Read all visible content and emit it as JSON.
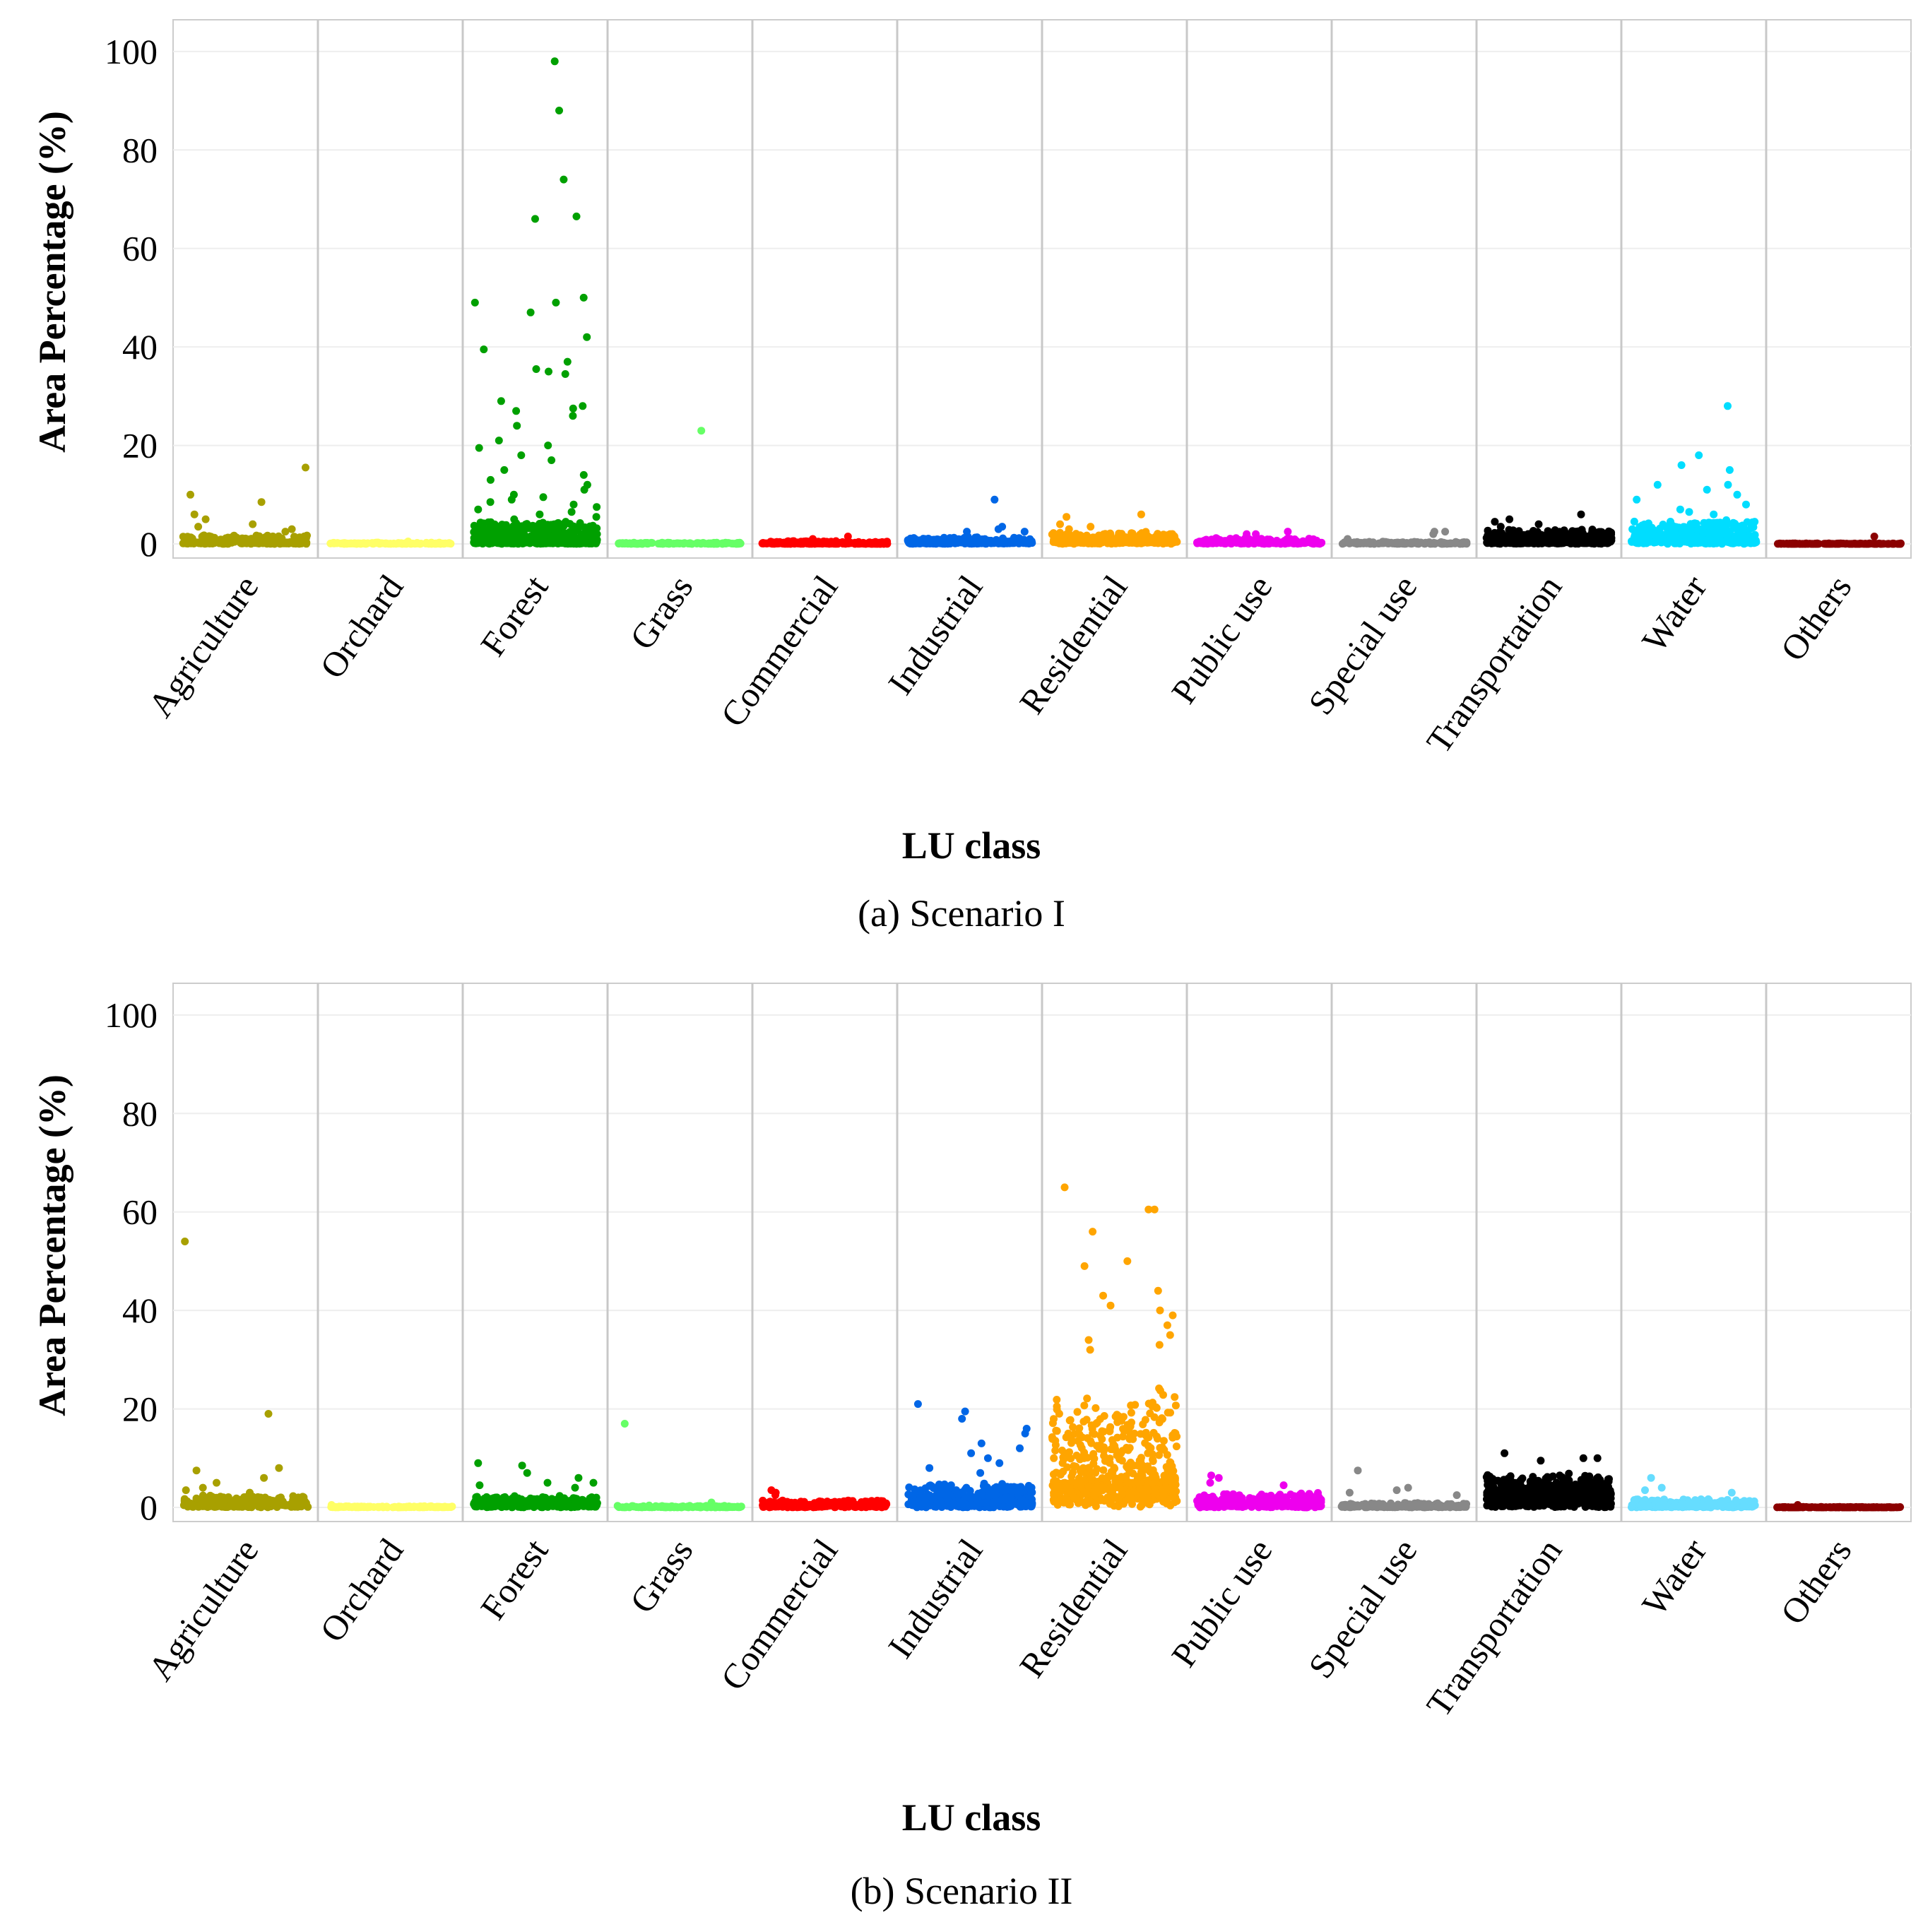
{
  "chart_data": [
    {
      "type": "scatter",
      "caption": "(a) Scenario I",
      "xlabel": "LU class",
      "ylabel": "Area Percentage (%)",
      "ylim": [
        0,
        105
      ],
      "yticks": [
        0,
        20,
        40,
        60,
        80,
        100
      ],
      "grid": true,
      "categories": [
        "Agriculture",
        "Orchard",
        "Forest",
        "Grass",
        "Commercial",
        "Industrial",
        "Residential",
        "Public use",
        "Special use",
        "Transportation",
        "Water",
        "Others"
      ],
      "colors": [
        "#a8a000",
        "#ffff66",
        "#00a000",
        "#66ff66",
        "#ff0000",
        "#0066e6",
        "#ffa500",
        "#ee00ee",
        "#888888",
        "#000000",
        "#00ddff",
        "#8b0000"
      ],
      "series": [
        {
          "category": "Agriculture",
          "points": 260,
          "max": 16,
          "dist": {
            "base": 0.3,
            "spread": 1.5,
            "outliers": [
              8.5,
              15.5,
              10,
              6,
              5,
              4,
              3.5,
              3,
              2.5
            ]
          }
        },
        {
          "category": "Orchard",
          "points": 120,
          "max": 0.5,
          "dist": {
            "base": 0.1,
            "spread": 0.2,
            "outliers": [
              0.5
            ]
          }
        },
        {
          "category": "Forest",
          "points": 600,
          "max": 98,
          "dist": {
            "base": 0.5,
            "spread": 4,
            "outliers": [
              98,
              88,
              74,
              66.5,
              66,
              50,
              49,
              49,
              47,
              42,
              39.5,
              37,
              35.5,
              35,
              34.5,
              29,
              28,
              27.5,
              27,
              26,
              24,
              21,
              20,
              19.5,
              18,
              17,
              15,
              14,
              13,
              12,
              11,
              10,
              9.5,
              9,
              8.5,
              8,
              7.5,
              7,
              6.5,
              6,
              5.5,
              5,
              4.5,
              4
            ]
          }
        },
        {
          "category": "Grass",
          "points": 120,
          "max": 23,
          "dist": {
            "base": 0.1,
            "spread": 0.2,
            "outliers": [
              23
            ]
          }
        },
        {
          "category": "Commercial",
          "points": 200,
          "max": 1.5,
          "dist": {
            "base": 0.1,
            "spread": 0.5,
            "outliers": [
              1.5,
              1
            ]
          }
        },
        {
          "category": "Industrial",
          "points": 260,
          "max": 9,
          "dist": {
            "base": 0.3,
            "spread": 1.2,
            "outliers": [
              9,
              3.5,
              3,
              2.5,
              2.5
            ]
          }
        },
        {
          "category": "Residential",
          "points": 320,
          "max": 6,
          "dist": {
            "base": 0.5,
            "spread": 2,
            "outliers": [
              6,
              5.5,
              4,
              3.5,
              3
            ]
          }
        },
        {
          "category": "Public use",
          "points": 220,
          "max": 2.5,
          "dist": {
            "base": 0.3,
            "spread": 1,
            "outliers": [
              2.5,
              2,
              2
            ]
          }
        },
        {
          "category": "Special use",
          "points": 140,
          "max": 2.5,
          "dist": {
            "base": 0.1,
            "spread": 0.4,
            "outliers": [
              2.5,
              2.5,
              2,
              1
            ]
          }
        },
        {
          "category": "Transportation",
          "points": 520,
          "max": 6,
          "dist": {
            "base": 0.5,
            "spread": 2.5,
            "outliers": [
              6,
              5,
              4.5,
              4,
              3.5
            ]
          }
        },
        {
          "category": "Water",
          "points": 480,
          "max": 28,
          "dist": {
            "base": 1,
            "spread": 4,
            "outliers": [
              28,
              18,
              16,
              15,
              12,
              12,
              11,
              10,
              9,
              8,
              7,
              6.5,
              6
            ]
          }
        },
        {
          "category": "Others",
          "points": 150,
          "max": 1.5,
          "dist": {
            "base": 0,
            "spread": 0.1,
            "outliers": [
              1.5
            ]
          }
        }
      ]
    },
    {
      "type": "scatter",
      "caption": "(b) Scenario II",
      "xlabel": "LU class",
      "ylabel": "Area Percentage (%)",
      "ylim": [
        0,
        105
      ],
      "yticks": [
        0,
        20,
        40,
        60,
        80,
        100
      ],
      "grid": true,
      "categories": [
        "Agriculture",
        "Orchard",
        "Forest",
        "Grass",
        "Commercial",
        "Industrial",
        "Residential",
        "Public use",
        "Special use",
        "Transportation",
        "Water",
        "Others"
      ],
      "colors": [
        "#a8a000",
        "#ffff66",
        "#00a000",
        "#66ff66",
        "#ff0000",
        "#0066e6",
        "#ffa500",
        "#ee00ee",
        "#888888",
        "#000000",
        "#66ddff",
        "#8b0000"
      ],
      "series": [
        {
          "category": "Agriculture",
          "points": 280,
          "max": 54,
          "dist": {
            "base": 0.5,
            "spread": 2,
            "outliers": [
              54,
              19,
              8,
              7.5,
              6,
              5,
              4,
              3.5,
              3
            ]
          }
        },
        {
          "category": "Orchard",
          "points": 120,
          "max": 0.5,
          "dist": {
            "base": 0.1,
            "spread": 0.2,
            "outliers": [
              0.5
            ]
          }
        },
        {
          "category": "Forest",
          "points": 320,
          "max": 9,
          "dist": {
            "base": 0.5,
            "spread": 2,
            "outliers": [
              9,
              8.5,
              7,
              6,
              5,
              5,
              4.5,
              4
            ]
          }
        },
        {
          "category": "Grass",
          "points": 120,
          "max": 17,
          "dist": {
            "base": 0.1,
            "spread": 0.3,
            "outliers": [
              17,
              1
            ]
          }
        },
        {
          "category": "Commercial",
          "points": 260,
          "max": 3.5,
          "dist": {
            "base": 0.3,
            "spread": 1.2,
            "outliers": [
              3.5,
              3,
              2.5
            ]
          }
        },
        {
          "category": "Industrial",
          "points": 520,
          "max": 21,
          "dist": {
            "base": 1,
            "spread": 4,
            "outliers": [
              21,
              19.5,
              18,
              16,
              15,
              13,
              12,
              11,
              10,
              9,
              8,
              7
            ]
          }
        },
        {
          "category": "Residential",
          "points": 560,
          "max": 65,
          "dist": {
            "base": 5,
            "spread": 20,
            "outliers": [
              65,
              60.5,
              60.5,
              56,
              50,
              49,
              44,
              43,
              41,
              40,
              39,
              37,
              35,
              34,
              33,
              32
            ]
          }
        },
        {
          "category": "Public use",
          "points": 320,
          "max": 6.5,
          "dist": {
            "base": 0.5,
            "spread": 2.5,
            "outliers": [
              6.5,
              6,
              5,
              4.5
            ]
          }
        },
        {
          "category": "Special use",
          "points": 220,
          "max": 7.5,
          "dist": {
            "base": 0.2,
            "spread": 0.8,
            "outliers": [
              7.5,
              4,
              3.5,
              3,
              2.5
            ]
          }
        },
        {
          "category": "Transportation",
          "points": 760,
          "max": 11,
          "dist": {
            "base": 3,
            "spread": 4,
            "outliers": [
              11,
              10,
              10,
              9.5
            ]
          }
        },
        {
          "category": "Water",
          "points": 260,
          "max": 6,
          "dist": {
            "base": 0.3,
            "spread": 1.5,
            "outliers": [
              6,
              4,
              3.5,
              3
            ]
          }
        },
        {
          "category": "Others",
          "points": 150,
          "max": 0.5,
          "dist": {
            "base": 0,
            "spread": 0.1,
            "outliers": [
              0.5
            ]
          }
        }
      ]
    }
  ]
}
